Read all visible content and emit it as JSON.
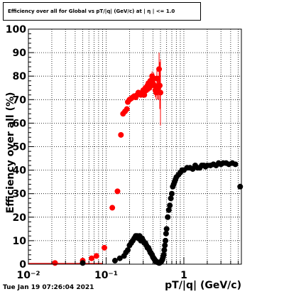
{
  "chart_data": {
    "type": "scatter",
    "title": "Efficiency over all for Global vs pT/|q| (GeV/c) at | η | <= 1.0",
    "xlabel": "pT/|q| (GeV/c)",
    "ylabel": "Efficiency over all (%)",
    "xscale": "log",
    "xlim": [
      0.01,
      5.5
    ],
    "ylim": [
      0,
      100
    ],
    "grid": true,
    "x_ticks": [
      {
        "v": 0.01,
        "label": "10⁻²"
      },
      {
        "v": 0.1,
        "label": "10⁻¹"
      },
      {
        "v": 1,
        "label": "1"
      }
    ],
    "y_ticks": [
      0,
      10,
      20,
      30,
      40,
      50,
      60,
      70,
      80,
      90,
      100
    ],
    "series": [
      {
        "color": "#ff0000",
        "x": [
          0.022,
          0.05,
          0.065,
          0.075,
          0.095,
          0.12,
          0.14,
          0.155,
          0.165,
          0.175,
          0.185,
          0.19,
          0.2,
          0.21,
          0.22,
          0.23,
          0.24,
          0.25,
          0.26,
          0.27,
          0.28,
          0.29,
          0.3,
          0.31,
          0.32,
          0.33,
          0.34,
          0.35,
          0.36,
          0.37,
          0.38,
          0.39,
          0.4,
          0.41,
          0.42,
          0.43,
          0.44,
          0.45,
          0.46,
          0.47,
          0.48,
          0.49,
          0.5
        ],
        "y": [
          0.5,
          1.5,
          2.5,
          3.5,
          7,
          24,
          31,
          55,
          64,
          65,
          66,
          69,
          70,
          70.5,
          71,
          71.5,
          71,
          72,
          73,
          72.5,
          72,
          73,
          74,
          72,
          75,
          74,
          76,
          77,
          75,
          78,
          76,
          80,
          77,
          79,
          76,
          74,
          73,
          79,
          74,
          75,
          83,
          76,
          73
        ],
        "yerr": [
          0,
          0,
          0,
          0,
          0,
          0,
          0,
          0,
          0,
          0,
          0,
          0,
          0.5,
          0.5,
          0.5,
          0.5,
          0.5,
          1,
          1,
          1,
          1,
          1,
          1,
          1,
          1,
          1.5,
          1.5,
          1.5,
          1.5,
          2,
          2,
          2,
          2,
          2.5,
          2.5,
          3,
          3,
          3.5,
          4,
          5,
          7,
          10,
          14
        ]
      },
      {
        "color": "#000000",
        "x": [
          0.05,
          0.13,
          0.15,
          0.17,
          0.18,
          0.19,
          0.2,
          0.21,
          0.22,
          0.23,
          0.24,
          0.25,
          0.26,
          0.27,
          0.28,
          0.29,
          0.3,
          0.31,
          0.32,
          0.33,
          0.34,
          0.35,
          0.36,
          0.37,
          0.38,
          0.39,
          0.4,
          0.41,
          0.42,
          0.43,
          0.44,
          0.45,
          0.46,
          0.47,
          0.48,
          0.49,
          0.5,
          0.51,
          0.52,
          0.53,
          0.54,
          0.55,
          0.56,
          0.57,
          0.58,
          0.59,
          0.6,
          0.62,
          0.64,
          0.66,
          0.68,
          0.7,
          0.72,
          0.74,
          0.76,
          0.78,
          0.8,
          0.85,
          0.9,
          0.95,
          1.0,
          1.1,
          1.2,
          1.3,
          1.4,
          1.5,
          1.6,
          1.7,
          1.8,
          1.9,
          2.0,
          2.2,
          2.4,
          2.6,
          2.8,
          3.0,
          3.2,
          3.5,
          3.8,
          4.2,
          4.6,
          5.3
        ],
        "y": [
          0.5,
          1.5,
          2.5,
          3.5,
          5,
          6,
          8,
          9,
          10,
          11,
          12,
          12,
          11,
          12,
          10,
          11,
          10,
          9,
          9,
          8,
          7,
          7,
          6,
          5,
          4.5,
          4,
          3,
          2.5,
          2,
          1.5,
          1,
          1,
          0.8,
          0.7,
          0.5,
          0.6,
          0.8,
          1,
          1.5,
          2,
          3,
          4,
          6,
          8,
          10,
          13,
          15,
          20,
          23,
          25,
          28,
          30,
          33,
          34,
          35,
          36,
          37,
          38,
          39,
          40,
          40,
          41,
          41,
          40.5,
          42,
          41,
          41,
          42,
          42,
          41.5,
          42,
          42,
          42.5,
          42,
          43,
          42.5,
          43,
          43,
          42.5,
          43,
          42.5,
          33
        ],
        "yerr": [
          0,
          0,
          0,
          0,
          0,
          0,
          0,
          0,
          0,
          0,
          0,
          0,
          0,
          0,
          0,
          0,
          0,
          0,
          0,
          0,
          0,
          0,
          0,
          0,
          0,
          0,
          0,
          0,
          0,
          0,
          0,
          0,
          0,
          0,
          0,
          0,
          0,
          0,
          0,
          0,
          0,
          0,
          0,
          0,
          0,
          0,
          0,
          0,
          0,
          0,
          0,
          0,
          0,
          0,
          0,
          0,
          0,
          0,
          0,
          0,
          0,
          0,
          0,
          0,
          0,
          0,
          0,
          0,
          0,
          0,
          0,
          0,
          0,
          0,
          0,
          0,
          0,
          0,
          0,
          0,
          0,
          0
        ]
      }
    ]
  },
  "footer": {
    "timestamp": "Tue Jan 19 07:26:04 2021"
  }
}
